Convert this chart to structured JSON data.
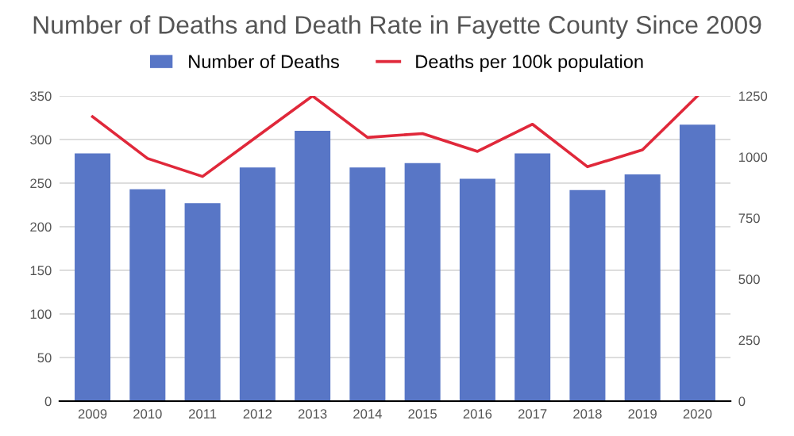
{
  "chart_data": {
    "type": "bar",
    "title": "Number of Deaths and Death Rate in Fayette County Since 2009",
    "categories": [
      "2009",
      "2010",
      "2011",
      "2012",
      "2013",
      "2014",
      "2015",
      "2016",
      "2017",
      "2018",
      "2019",
      "2020"
    ],
    "series": [
      {
        "name": "Number of Deaths",
        "color": "#5876c6",
        "values": [
          284,
          243,
          227,
          268,
          310,
          268,
          273,
          255,
          284,
          242,
          260,
          317
        ]
      },
      {
        "name": "Deaths per 100k population",
        "color": "#e0283a",
        "type": "line",
        "axis": "y2",
        "values": [
          1165,
          994,
          920,
          1085,
          1250,
          1080,
          1096,
          1023,
          1134,
          960,
          1029,
          1250
        ]
      }
    ],
    "ylim": [
      0,
      350
    ],
    "yticks": [
      0,
      50,
      100,
      150,
      200,
      250,
      300,
      350
    ],
    "y2lim": [
      0,
      1250
    ],
    "y2ticks": [
      0,
      250,
      500,
      750,
      1000,
      1250
    ],
    "grid": "y",
    "legend": "top",
    "marker": "none",
    "line_style": "solid"
  }
}
